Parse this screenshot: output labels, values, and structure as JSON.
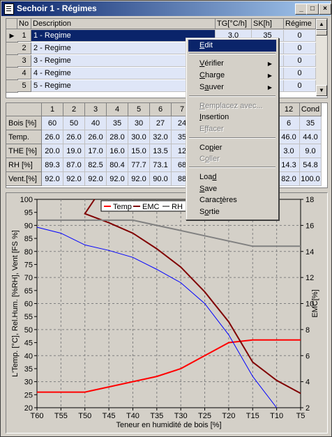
{
  "window": {
    "title": "Sechoir 1 - Régimes",
    "min_label": "_",
    "max_label": "□",
    "close_label": "×"
  },
  "regimes_grid": {
    "headers": {
      "no": "No",
      "description": "Description",
      "tg": "TG[°C/h]",
      "sk": "SK[h]",
      "regime": "Régime"
    },
    "rows": [
      {
        "no": "1",
        "description": "1 - Regime",
        "tg": "3.0",
        "sk": "35",
        "regime": "0",
        "selected": true
      },
      {
        "no": "2",
        "description": "2 - Regime",
        "tg": "",
        "sk": "",
        "regime": "0"
      },
      {
        "no": "3",
        "description": "3 - Regime",
        "tg": "",
        "sk": "",
        "regime": "0"
      },
      {
        "no": "4",
        "description": "4 - Regime",
        "tg": "",
        "sk": "",
        "regime": "0"
      },
      {
        "no": "5",
        "description": "5 - Regime",
        "tg": "",
        "sk": "",
        "regime": "0"
      }
    ]
  },
  "params_grid": {
    "col_headers": [
      "1",
      "2",
      "3",
      "4",
      "5",
      "6",
      "7",
      "",
      "",
      "",
      "",
      "12",
      "Cond"
    ],
    "rows": [
      {
        "label": "Bois [%]",
        "values": [
          "60",
          "50",
          "40",
          "35",
          "30",
          "27",
          "24",
          "",
          "",
          "",
          "6",
          "35"
        ]
      },
      {
        "label": "Temp. [°C]",
        "values": [
          "26.0",
          "26.0",
          "26.0",
          "28.0",
          "30.0",
          "32.0",
          "35",
          "",
          "",
          "",
          "46.0",
          "44.0"
        ]
      },
      {
        "label": "THE [%]",
        "values": [
          "20.0",
          "19.0",
          "17.0",
          "16.0",
          "15.0",
          "13.5",
          "12",
          "",
          "",
          "",
          "3.0",
          "9.0"
        ]
      },
      {
        "label": "RH [%]",
        "values": [
          "89.3",
          "87.0",
          "82.5",
          "80.4",
          "77.7",
          "73.1",
          "68",
          "",
          "",
          "",
          "14.3",
          "54.8"
        ]
      },
      {
        "label": "Vent.[%]",
        "values": [
          "92.0",
          "92.0",
          "92.0",
          "92.0",
          "92.0",
          "90.0",
          "88",
          "",
          "",
          "",
          "82.0",
          "100.0"
        ]
      }
    ]
  },
  "context_menu": {
    "items": [
      {
        "label": "Edit",
        "underline": "E",
        "selected": true
      },
      {
        "label": "Vérifier",
        "underline": "V",
        "submenu": true
      },
      {
        "label": "Charge",
        "underline": "C",
        "submenu": true
      },
      {
        "label": "Sauver",
        "underline": "a",
        "submenu": true
      },
      {
        "label": "Remplacez avec...",
        "underline": "R",
        "disabled": true
      },
      {
        "label": "Insertion",
        "underline": "I"
      },
      {
        "label": "Effacer",
        "underline": "f",
        "disabled": true
      },
      {
        "label": "Copier",
        "underline": "p"
      },
      {
        "label": "Coller",
        "underline": "o",
        "disabled": true
      },
      {
        "label": "Load",
        "underline": "d"
      },
      {
        "label": "Save",
        "underline": "S"
      },
      {
        "label": "Caractères",
        "underline": "t"
      },
      {
        "label": "Sortie",
        "underline": "o"
      }
    ]
  },
  "chart_data": {
    "type": "line",
    "xlabel": "Teneur en humidité de bois [%]",
    "ylabel": "L'Temp. [°C], Rel.Hum. [%RH], Vent [FS %]",
    "y2label": "EMC[%]",
    "categories": [
      "T60",
      "T55",
      "T50",
      "T45",
      "T40",
      "T35",
      "T30",
      "T25",
      "T20",
      "T15",
      "T10",
      "T5"
    ],
    "ylim": [
      20,
      100
    ],
    "y2lim": [
      2,
      18
    ],
    "yticks": [
      20,
      25,
      30,
      35,
      40,
      45,
      50,
      55,
      60,
      65,
      70,
      75,
      80,
      85,
      90,
      95,
      100
    ],
    "y2ticks": [
      2,
      4,
      6,
      8,
      10,
      12,
      14,
      16,
      18
    ],
    "legend": [
      "Temp",
      "EMC",
      "RH"
    ],
    "series": [
      {
        "name": "Temp",
        "color": "#ff0000",
        "x": [
          60,
          55,
          50,
          45,
          40,
          35,
          30,
          25,
          20,
          15,
          10,
          5
        ],
        "y": [
          26,
          26,
          26,
          28,
          30,
          32,
          35,
          40,
          45,
          46,
          46,
          46
        ]
      },
      {
        "name": "EMC",
        "color": "#800000",
        "axis": "right",
        "x": [
          48,
          50,
          45,
          40,
          35,
          30,
          25,
          20,
          15,
          10,
          5
        ],
        "y": [
          18,
          16.9,
          16.2,
          15.4,
          14.2,
          12.8,
          10.9,
          8.6,
          5.5,
          4.1,
          3.1
        ]
      },
      {
        "name": "RH",
        "color": "#808080",
        "x": [
          60,
          55,
          50,
          45,
          40,
          35,
          30,
          25,
          20,
          15,
          10,
          5
        ],
        "y": [
          92,
          92,
          92,
          92,
          92,
          90,
          88,
          86,
          84,
          82,
          82,
          82
        ]
      },
      {
        "name": "",
        "color": "#0000ff",
        "x": [
          60,
          55,
          50,
          45,
          40,
          35,
          30,
          25,
          20,
          15,
          10
        ],
        "y": [
          89.3,
          87,
          82.5,
          80.4,
          77.7,
          73.1,
          68,
          60,
          48,
          32,
          20
        ]
      }
    ]
  }
}
